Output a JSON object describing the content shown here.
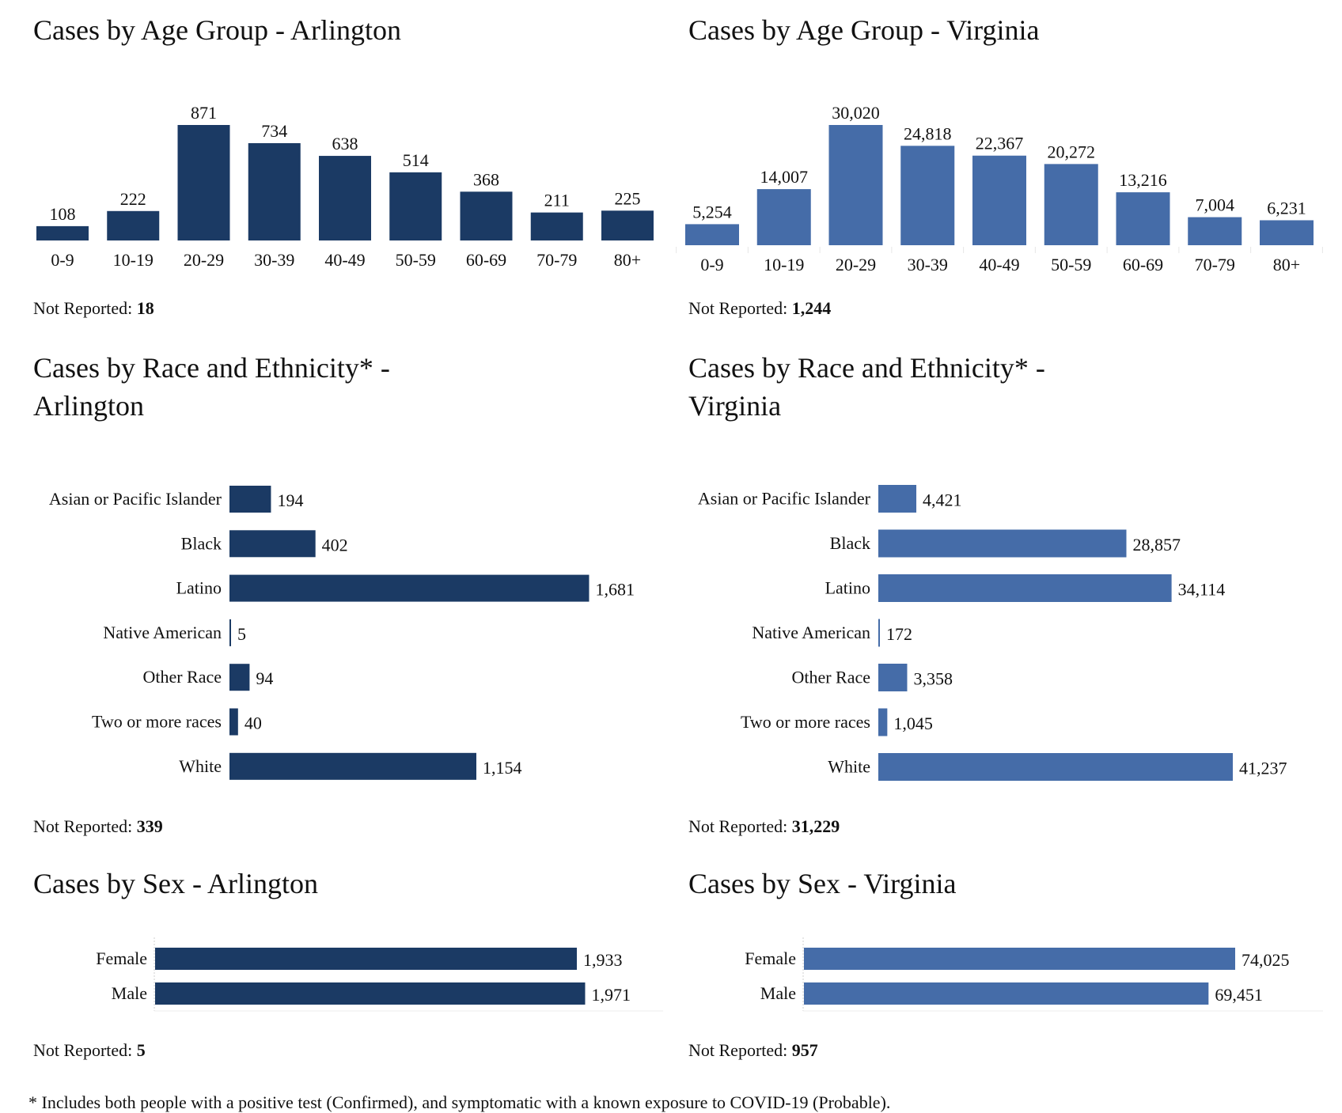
{
  "colors": {
    "arlington": "#1b3a64",
    "virginia": "#456ca8",
    "axis": "#dddddd"
  },
  "panels": {
    "age_arlington": {
      "title": "Cases by Age Group - Arlington",
      "not_reported_label": "Not Reported:",
      "not_reported_value": "18"
    },
    "age_virginia": {
      "title": "Cases by Age Group - Virginia",
      "not_reported_label": "Not Reported:",
      "not_reported_value": "1,244"
    },
    "race_arlington": {
      "title_line1": "Cases by Race and Ethnicity* -",
      "title_line2": "Arlington",
      "not_reported_label": "Not Reported:",
      "not_reported_value": "339"
    },
    "race_virginia": {
      "title_line1": "Cases by Race and Ethnicity* -",
      "title_line2": "Virginia",
      "not_reported_label": "Not Reported:",
      "not_reported_value": "31,229"
    },
    "sex_arlington": {
      "title": "Cases by Sex - Arlington",
      "not_reported_label": "Not Reported:",
      "not_reported_value": "5"
    },
    "sex_virginia": {
      "title": "Cases by Sex - Virginia",
      "not_reported_label": "Not Reported:",
      "not_reported_value": "957"
    }
  },
  "footnote": "* Includes both people with a positive test (Confirmed), and symptomatic with a known exposure to COVID-19 (Probable).",
  "chart_data": [
    {
      "id": "age_arlington",
      "type": "bar",
      "orientation": "vertical",
      "title": "Cases by Age Group - Arlington",
      "categories": [
        "0-9",
        "10-19",
        "20-29",
        "30-39",
        "40-49",
        "50-59",
        "60-69",
        "70-79",
        "80+"
      ],
      "values": [
        108,
        222,
        871,
        734,
        638,
        514,
        368,
        211,
        225
      ],
      "labels": [
        "108",
        "222",
        "871",
        "734",
        "638",
        "514",
        "368",
        "211",
        "225"
      ],
      "color": "#1b3a64",
      "xlabel": "",
      "ylabel": "",
      "grid": false
    },
    {
      "id": "age_virginia",
      "type": "bar",
      "orientation": "vertical",
      "title": "Cases by Age Group - Virginia",
      "categories": [
        "0-9",
        "10-19",
        "20-29",
        "30-39",
        "40-49",
        "50-59",
        "60-69",
        "70-79",
        "80+"
      ],
      "values": [
        5254,
        14007,
        30020,
        24818,
        22367,
        20272,
        13216,
        7004,
        6231
      ],
      "labels": [
        "5,254",
        "14,007",
        "30,020",
        "24,818",
        "22,367",
        "20,272",
        "13,216",
        "7,004",
        "6,231"
      ],
      "color": "#456ca8",
      "xlabel": "",
      "ylabel": "",
      "grid": false
    },
    {
      "id": "race_arlington",
      "type": "bar",
      "orientation": "horizontal",
      "title": "Cases by Race and Ethnicity* - Arlington",
      "categories": [
        "Asian or Pacific Islander",
        "Black",
        "Latino",
        "Native American",
        "Other Race",
        "Two or more races",
        "White"
      ],
      "values": [
        194,
        402,
        1681,
        5,
        94,
        40,
        1154
      ],
      "labels": [
        "194",
        "402",
        "1,681",
        "5",
        "94",
        "40",
        "1,154"
      ],
      "color": "#1b3a64",
      "grid": false
    },
    {
      "id": "race_virginia",
      "type": "bar",
      "orientation": "horizontal",
      "title": "Cases by Race and Ethnicity* - Virginia",
      "categories": [
        "Asian or Pacific Islander",
        "Black",
        "Latino",
        "Native American",
        "Other Race",
        "Two or more races",
        "White"
      ],
      "values": [
        4421,
        28857,
        34114,
        172,
        3358,
        1045,
        41237
      ],
      "labels": [
        "4,421",
        "28,857",
        "34,114",
        "172",
        "3,358",
        "1,045",
        "41,237"
      ],
      "color": "#456ca8",
      "grid": false
    },
    {
      "id": "sex_arlington",
      "type": "bar",
      "orientation": "horizontal",
      "title": "Cases by Sex - Arlington",
      "categories": [
        "Female",
        "Male"
      ],
      "values": [
        1933,
        1971
      ],
      "labels": [
        "1,933",
        "1,971"
      ],
      "color": "#1b3a64",
      "grid": false
    },
    {
      "id": "sex_virginia",
      "type": "bar",
      "orientation": "horizontal",
      "title": "Cases by Sex - Virginia",
      "categories": [
        "Female",
        "Male"
      ],
      "values": [
        74025,
        69451
      ],
      "labels": [
        "74,025",
        "69,451"
      ],
      "color": "#456ca8",
      "grid": false
    }
  ]
}
